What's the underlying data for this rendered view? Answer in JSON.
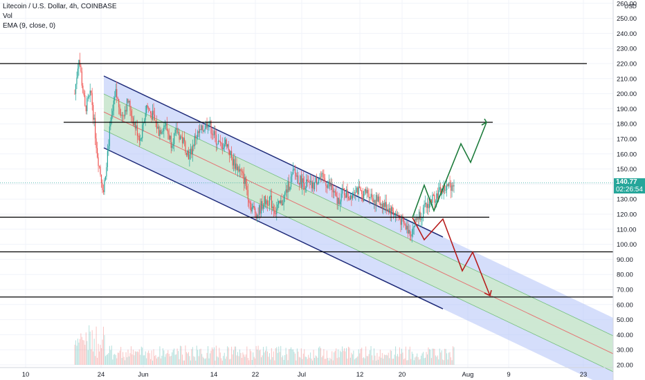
{
  "legend": {
    "title": "Litecoin / U.S. Dollar, 4h, COINBASE",
    "indicator_vol": "Vol",
    "indicator_ema": "EMA (9, close, 0)"
  },
  "price_tag": {
    "price": "140.77",
    "countdown": "02:26:54"
  },
  "axis": {
    "currency": "USD"
  },
  "colors": {
    "up": "#26a69a",
    "down": "#ef5350",
    "channel_outer": "#b3c3f7",
    "channel_inner": "#cdeacb",
    "channel_line": "#1e2a78",
    "midline": "#e57373",
    "green_path": "#1b7a3a",
    "red_path": "#b71c1c",
    "support": "#000000"
  },
  "chart_data": {
    "type": "candlestick",
    "title": "Litecoin / U.S. Dollar, 4h, COINBASE",
    "y_ticks": [
      20,
      30,
      40,
      50,
      60,
      70,
      80,
      90,
      100,
      110,
      120,
      130,
      140,
      150,
      160,
      170,
      180,
      190,
      200,
      210,
      220,
      230,
      240,
      250,
      260
    ],
    "x_ticks": [
      "10",
      "24",
      "Jun",
      "14",
      "22",
      "Jul",
      "12",
      "20",
      "Aug",
      "9",
      "23"
    ],
    "ylim": [
      20,
      262
    ],
    "last_price": 140.77,
    "support_lines": [
      220,
      181,
      118,
      95,
      65
    ],
    "price_path": [
      [
        0,
        200
      ],
      [
        2,
        225
      ],
      [
        5,
        190
      ],
      [
        8,
        200
      ],
      [
        11,
        160
      ],
      [
        14,
        135
      ],
      [
        17,
        175
      ],
      [
        20,
        200
      ],
      [
        23,
        185
      ],
      [
        26,
        195
      ],
      [
        29,
        180
      ],
      [
        32,
        170
      ],
      [
        35,
        192
      ],
      [
        38,
        185
      ],
      [
        41,
        175
      ],
      [
        44,
        180
      ],
      [
        47,
        168
      ],
      [
        50,
        175
      ],
      [
        53,
        168
      ],
      [
        56,
        158
      ],
      [
        59,
        172
      ],
      [
        62,
        175
      ],
      [
        65,
        182
      ],
      [
        68,
        172
      ],
      [
        71,
        165
      ],
      [
        74,
        168
      ],
      [
        77,
        155
      ],
      [
        80,
        150
      ],
      [
        83,
        142
      ],
      [
        86,
        125
      ],
      [
        89,
        120
      ],
      [
        92,
        128
      ],
      [
        95,
        130
      ],
      [
        98,
        122
      ],
      [
        101,
        128
      ],
      [
        104,
        138
      ],
      [
        107,
        148
      ],
      [
        110,
        142
      ],
      [
        113,
        140
      ],
      [
        116,
        138
      ],
      [
        119,
        145
      ],
      [
        122,
        142
      ],
      [
        125,
        138
      ],
      [
        128,
        128
      ],
      [
        131,
        135
      ],
      [
        134,
        132
      ],
      [
        137,
        138
      ],
      [
        140,
        132
      ],
      [
        143,
        135
      ],
      [
        146,
        130
      ],
      [
        149,
        128
      ],
      [
        152,
        125
      ],
      [
        155,
        122
      ],
      [
        158,
        118
      ],
      [
        161,
        112
      ],
      [
        164,
        108
      ],
      [
        167,
        118
      ],
      [
        170,
        122
      ],
      [
        173,
        128
      ],
      [
        176,
        132
      ],
      [
        179,
        136
      ],
      [
        182,
        138
      ],
      [
        185,
        140.77
      ]
    ]
  }
}
